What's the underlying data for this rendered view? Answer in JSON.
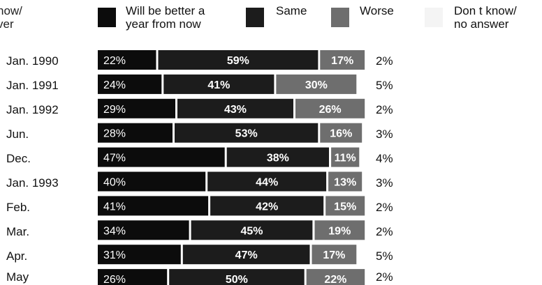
{
  "legend": {
    "partial": "now/\nver",
    "better": "Will be better a\nyear from now",
    "same": "Same",
    "worse": "Worse",
    "dontknow": "Don t know/\nno answer"
  },
  "colors": {
    "better": "#0c0c0c",
    "same": "#1c1c1c",
    "worse": "#6e6e6e",
    "dontknow": "#ececec",
    "text_on_dark": "#ffffff"
  },
  "chart_data": {
    "type": "bar",
    "orientation": "horizontal",
    "stacked": true,
    "categories": [
      "Jan. 1990",
      "Jan. 1991",
      "Jan. 1992",
      "Jun.",
      "Dec.",
      "Jan. 1993",
      "Feb.",
      "Mar.",
      "Apr.",
      "May"
    ],
    "series": [
      {
        "name": "Will be better a year from now",
        "values": [
          22,
          24,
          29,
          28,
          47,
          40,
          41,
          34,
          31,
          26
        ]
      },
      {
        "name": "Same",
        "values": [
          59,
          41,
          43,
          53,
          38,
          44,
          42,
          45,
          47,
          50
        ]
      },
      {
        "name": "Worse",
        "values": [
          17,
          30,
          26,
          16,
          11,
          13,
          15,
          19,
          17,
          22
        ]
      },
      {
        "name": "Don t know/ no answer",
        "values": [
          2,
          5,
          2,
          3,
          4,
          3,
          2,
          2,
          5,
          2
        ]
      }
    ],
    "value_suffix": "%",
    "xlim": [
      0,
      100
    ]
  }
}
